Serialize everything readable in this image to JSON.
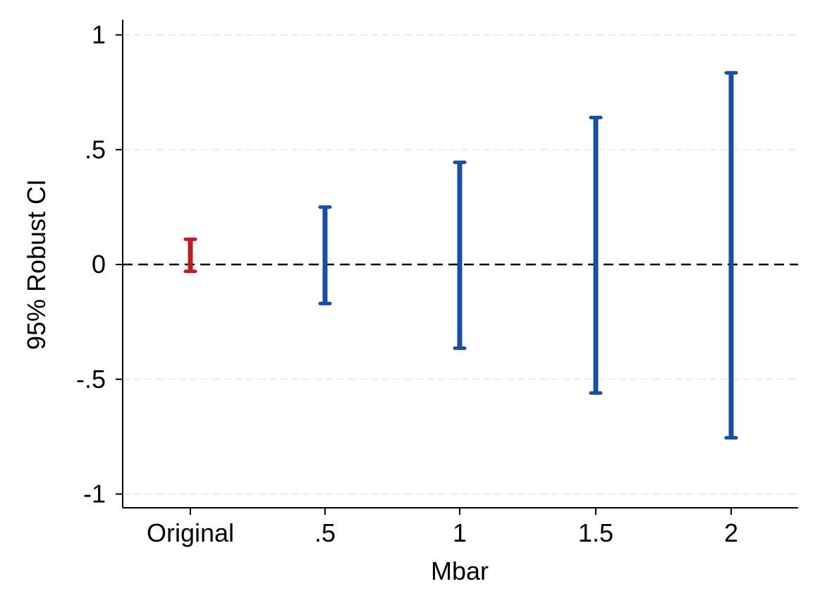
{
  "chart_data": {
    "type": "errorbar",
    "xlabel": "Mbar",
    "ylabel": "95% Robust CI",
    "categories": [
      "Original",
      ".5",
      "1",
      "1.5",
      "2"
    ],
    "ylim": [
      -1.04,
      1.04
    ],
    "yticks": [
      {
        "value": 1,
        "label": "1"
      },
      {
        "value": 0.5,
        "label": ".5"
      },
      {
        "value": 0,
        "label": "0"
      },
      {
        "value": -0.5,
        "label": "-.5"
      },
      {
        "value": -1,
        "label": "-1"
      }
    ],
    "reference_line": {
      "value": 0,
      "style": "dashed"
    },
    "grid": "horizontal",
    "intervals": [
      {
        "category": "Original",
        "lower": -0.03,
        "upper": 0.11,
        "color": "#b22222"
      },
      {
        "category": ".5",
        "lower": -0.17,
        "upper": 0.25,
        "color": "#1a4ea1"
      },
      {
        "category": "1",
        "lower": -0.365,
        "upper": 0.445,
        "color": "#1a4ea1"
      },
      {
        "category": "1.5",
        "lower": -0.56,
        "upper": 0.64,
        "color": "#1a4ea1"
      },
      {
        "category": "2",
        "lower": -0.755,
        "upper": 0.835,
        "color": "#1a4ea1"
      }
    ],
    "colors": {
      "grid": "#ebebeb",
      "axis": "#000000",
      "reference": "#000000"
    }
  }
}
